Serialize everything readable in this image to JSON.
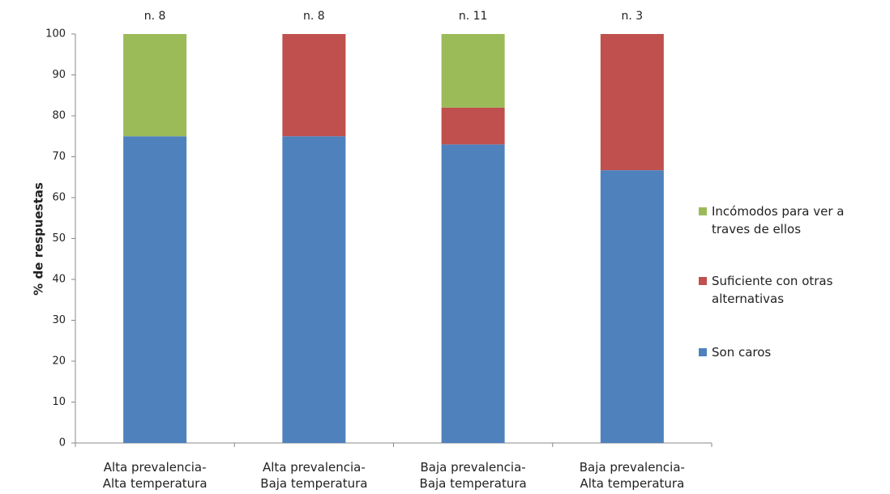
{
  "chart_data": {
    "type": "stacked_bar",
    "y_label": "% de respuestas",
    "categories": [
      "Alta prevalencia-\nAlta temperatura",
      "Alta prevalencia-\nBaja temperatura",
      "Baja prevalencia-\nBaja temperatura",
      "Baja prevalencia-\nAlta temperatura"
    ],
    "annotations": [
      "n. 8",
      "n. 8",
      "n. 11",
      "n. 3"
    ],
    "series": [
      {
        "name": "Son caros",
        "color": "#4f81bd",
        "values": [
          75,
          75,
          73,
          66.7
        ]
      },
      {
        "name": "Suficiente con otras alternativas",
        "color": "#c0504d",
        "values": [
          0,
          25,
          9,
          33.3
        ]
      },
      {
        "name": "Incómodos para ver a traves de ellos",
        "color": "#9bbb59",
        "values": [
          25,
          0,
          18,
          0
        ]
      }
    ],
    "ylim": [
      0,
      100
    ],
    "yticks": [
      0,
      10,
      20,
      30,
      40,
      50,
      60,
      70,
      80,
      90,
      100
    ],
    "grid": false,
    "legend": "right"
  }
}
